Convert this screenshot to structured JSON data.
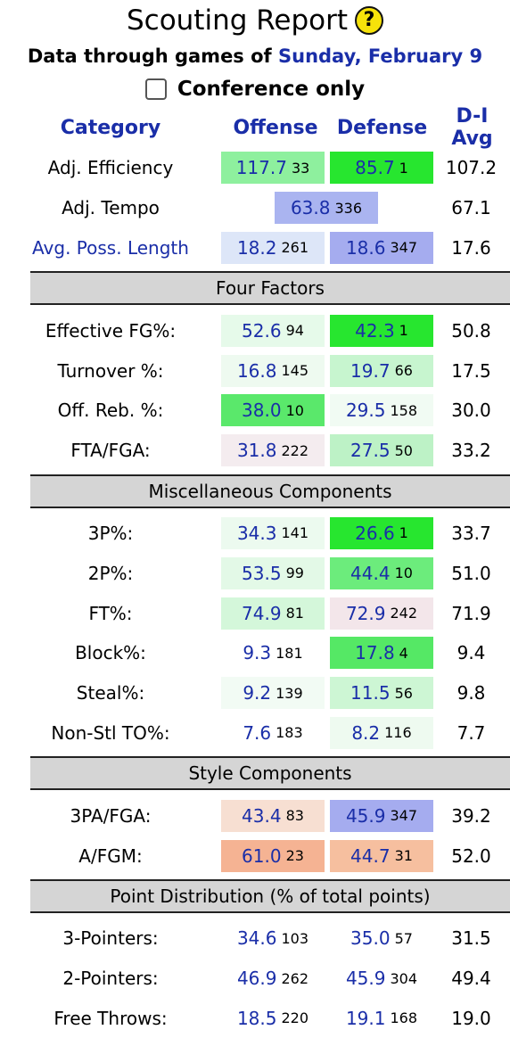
{
  "header": {
    "title": "Scouting Report",
    "help_glyph": "?",
    "subtitle_prefix": "Data through games of",
    "subtitle_date": "Sunday, February 9",
    "conference_label": "Conference only",
    "conference_checked": false
  },
  "columns": {
    "category": "Category",
    "offense": "Offense",
    "defense": "Defense",
    "avg": "D-I Avg"
  },
  "top_rows": [
    {
      "label": "Adj. Efficiency",
      "off": "117.7",
      "off_rank": "33",
      "def": "85.7",
      "def_rank": "1",
      "avg": "107.2",
      "off_bg": "#8ef09e",
      "def_bg": "#27e62f"
    },
    {
      "label": "Adj. Tempo",
      "tempo": "63.8",
      "tempo_rank": "336",
      "avg": "67.1",
      "tempo_bg": "#aab4f0"
    },
    {
      "label": "Avg. Poss. Length",
      "off": "18.2",
      "off_rank": "261",
      "def": "18.6",
      "def_rank": "347",
      "avg": "17.6",
      "off_bg": "#dde6f8",
      "def_bg": "#a5acef"
    }
  ],
  "sections": {
    "four_factors": "Four Factors",
    "misc": "Miscellaneous Components",
    "style": "Style Components",
    "points": "Point Distribution (% of total points)"
  },
  "four_factors": [
    {
      "label": "Effective FG%:",
      "off": "52.6",
      "off_rank": "94",
      "def": "42.3",
      "def_rank": "1",
      "avg": "50.8",
      "off_bg": "#e6faea",
      "def_bg": "#27e62f"
    },
    {
      "label": "Turnover %:",
      "off": "16.8",
      "off_rank": "145",
      "def": "19.7",
      "def_rank": "66",
      "avg": "17.5",
      "off_bg": "#eefaf0",
      "def_bg": "#c7f5cf"
    },
    {
      "label": "Off. Reb. %:",
      "off": "38.0",
      "off_rank": "10",
      "def": "29.5",
      "def_rank": "158",
      "avg": "30.0",
      "off_bg": "#5ae86b",
      "def_bg": "#f1fbf3"
    },
    {
      "label": "FTA/FGA:",
      "off": "31.8",
      "off_rank": "222",
      "def": "27.5",
      "def_rank": "50",
      "avg": "33.2",
      "off_bg": "#f4ecef",
      "def_bg": "#bdf2c6"
    }
  ],
  "misc": [
    {
      "label": "3P%:",
      "off": "34.3",
      "off_rank": "141",
      "def": "26.6",
      "def_rank": "1",
      "avg": "33.7",
      "off_bg": "#ecfaef",
      "def_bg": "#27e62f"
    },
    {
      "label": "2P%:",
      "off": "53.5",
      "off_rank": "99",
      "def": "44.4",
      "def_rank": "10",
      "avg": "51.0",
      "off_bg": "#e3f9e7",
      "def_bg": "#6cec7c"
    },
    {
      "label": "FT%:",
      "off": "74.9",
      "off_rank": "81",
      "def": "72.9",
      "def_rank": "242",
      "avg": "71.9",
      "off_bg": "#d4f7da",
      "def_bg": "#f3e6ea"
    },
    {
      "label": "Block%:",
      "off": "9.3",
      "off_rank": "181",
      "def": "17.8",
      "def_rank": "4",
      "avg": "9.4",
      "off_bg": "#ffffff",
      "def_bg": "#55e865"
    },
    {
      "label": "Steal%:",
      "off": "9.2",
      "off_rank": "139",
      "def": "11.5",
      "def_rank": "56",
      "avg": "9.8",
      "off_bg": "#f2fbf4",
      "def_bg": "#cdf6d4"
    },
    {
      "label": "Non-Stl TO%:",
      "off": "7.6",
      "off_rank": "183",
      "def": "8.2",
      "def_rank": "116",
      "avg": "7.7",
      "off_bg": "#ffffff",
      "def_bg": "#eefaf0"
    }
  ],
  "style": [
    {
      "label": "3PA/FGA:",
      "off": "43.4",
      "off_rank": "83",
      "def": "45.9",
      "def_rank": "347",
      "avg": "39.2",
      "off_bg": "#f7dfd2",
      "def_bg": "#a5acef"
    },
    {
      "label": "A/FGM:",
      "off": "61.0",
      "off_rank": "23",
      "def": "44.7",
      "def_rank": "31",
      "avg": "52.0",
      "off_bg": "#f5b393",
      "def_bg": "#f6bf9f"
    }
  ],
  "points": [
    {
      "label": "3-Pointers:",
      "off": "34.6",
      "off_rank": "103",
      "def": "35.0",
      "def_rank": "57",
      "avg": "31.5",
      "off_bg": "#ffffff",
      "def_bg": "#ffffff"
    },
    {
      "label": "2-Pointers:",
      "off": "46.9",
      "off_rank": "262",
      "def": "45.9",
      "def_rank": "304",
      "avg": "49.4",
      "off_bg": "#ffffff",
      "def_bg": "#ffffff"
    },
    {
      "label": "Free Throws:",
      "off": "18.5",
      "off_rank": "220",
      "def": "19.1",
      "def_rank": "168",
      "avg": "19.0",
      "off_bg": "#ffffff",
      "def_bg": "#ffffff"
    }
  ]
}
